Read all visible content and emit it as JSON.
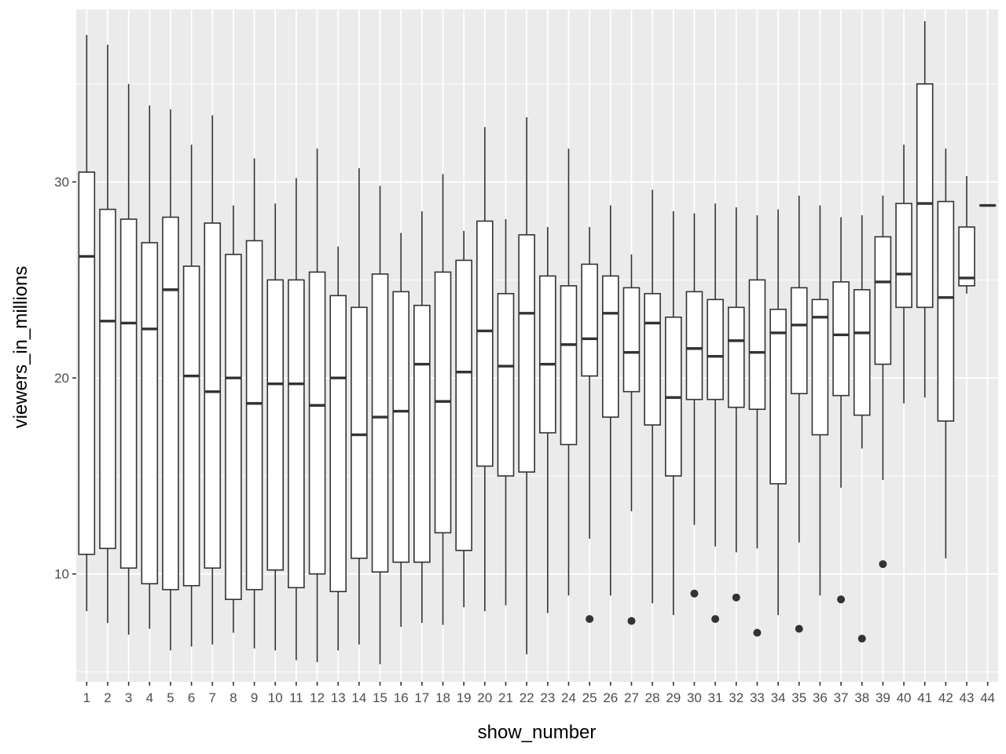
{
  "chart_data": {
    "type": "boxplot",
    "xlabel": "show_number",
    "ylabel": "viewers_in_millions",
    "ylim": [
      4.5,
      38.8
    ],
    "y_ticks": [
      10,
      20,
      30
    ],
    "grid": true,
    "legend": "none",
    "colors": {
      "panel": "#ebebeb",
      "grid_major": "#ffffff",
      "box_fill": "#ffffff",
      "box_line": "#333333",
      "outlier": "#333333",
      "tick_text": "#4d4d4d"
    },
    "categories": [
      "1",
      "2",
      "3",
      "4",
      "5",
      "6",
      "7",
      "8",
      "9",
      "10",
      "11",
      "12",
      "13",
      "14",
      "15",
      "16",
      "17",
      "18",
      "19",
      "20",
      "21",
      "22",
      "23",
      "24",
      "25",
      "26",
      "27",
      "28",
      "29",
      "30",
      "31",
      "32",
      "33",
      "34",
      "35",
      "36",
      "37",
      "38",
      "39",
      "40",
      "41",
      "42",
      "43",
      "44"
    ],
    "boxes": [
      {
        "x": "1",
        "lower": 8.1,
        "q1": 11.0,
        "median": 26.2,
        "q3": 30.5,
        "upper": 37.5,
        "outliers": []
      },
      {
        "x": "2",
        "lower": 7.5,
        "q1": 11.3,
        "median": 22.9,
        "q3": 28.6,
        "upper": 37.0,
        "outliers": []
      },
      {
        "x": "3",
        "lower": 6.9,
        "q1": 10.3,
        "median": 22.8,
        "q3": 28.1,
        "upper": 35.0,
        "outliers": []
      },
      {
        "x": "4",
        "lower": 7.2,
        "q1": 9.5,
        "median": 22.5,
        "q3": 26.9,
        "upper": 33.9,
        "outliers": []
      },
      {
        "x": "5",
        "lower": 6.1,
        "q1": 9.2,
        "median": 24.5,
        "q3": 28.2,
        "upper": 33.7,
        "outliers": []
      },
      {
        "x": "6",
        "lower": 6.3,
        "q1": 9.4,
        "median": 20.1,
        "q3": 25.7,
        "upper": 31.9,
        "outliers": []
      },
      {
        "x": "7",
        "lower": 6.4,
        "q1": 10.3,
        "median": 19.3,
        "q3": 27.9,
        "upper": 33.4,
        "outliers": []
      },
      {
        "x": "8",
        "lower": 7.0,
        "q1": 8.7,
        "median": 20.0,
        "q3": 26.3,
        "upper": 28.8,
        "outliers": []
      },
      {
        "x": "9",
        "lower": 6.2,
        "q1": 9.2,
        "median": 18.7,
        "q3": 27.0,
        "upper": 31.2,
        "outliers": []
      },
      {
        "x": "10",
        "lower": 6.1,
        "q1": 10.2,
        "median": 19.7,
        "q3": 25.0,
        "upper": 28.9,
        "outliers": []
      },
      {
        "x": "11",
        "lower": 5.6,
        "q1": 9.3,
        "median": 19.7,
        "q3": 25.0,
        "upper": 30.2,
        "outliers": []
      },
      {
        "x": "12",
        "lower": 5.5,
        "q1": 10.0,
        "median": 18.6,
        "q3": 25.4,
        "upper": 31.7,
        "outliers": []
      },
      {
        "x": "13",
        "lower": 6.1,
        "q1": 9.1,
        "median": 20.0,
        "q3": 24.2,
        "upper": 26.7,
        "outliers": []
      },
      {
        "x": "14",
        "lower": 6.4,
        "q1": 10.8,
        "median": 17.1,
        "q3": 23.6,
        "upper": 30.7,
        "outliers": []
      },
      {
        "x": "15",
        "lower": 5.4,
        "q1": 10.1,
        "median": 18.0,
        "q3": 25.3,
        "upper": 29.8,
        "outliers": []
      },
      {
        "x": "16",
        "lower": 7.3,
        "q1": 10.6,
        "median": 18.3,
        "q3": 24.4,
        "upper": 27.4,
        "outliers": []
      },
      {
        "x": "17",
        "lower": 7.5,
        "q1": 10.6,
        "median": 20.7,
        "q3": 23.7,
        "upper": 28.5,
        "outliers": []
      },
      {
        "x": "18",
        "lower": 7.4,
        "q1": 12.1,
        "median": 18.8,
        "q3": 25.4,
        "upper": 30.4,
        "outliers": []
      },
      {
        "x": "19",
        "lower": 8.3,
        "q1": 11.2,
        "median": 20.3,
        "q3": 26.0,
        "upper": 27.5,
        "outliers": []
      },
      {
        "x": "20",
        "lower": 8.1,
        "q1": 15.5,
        "median": 22.4,
        "q3": 28.0,
        "upper": 32.8,
        "outliers": []
      },
      {
        "x": "21",
        "lower": 8.4,
        "q1": 15.0,
        "median": 20.6,
        "q3": 24.3,
        "upper": 28.1,
        "outliers": []
      },
      {
        "x": "22",
        "lower": 5.9,
        "q1": 15.2,
        "median": 23.3,
        "q3": 27.3,
        "upper": 33.3,
        "outliers": []
      },
      {
        "x": "23",
        "lower": 8.0,
        "q1": 17.2,
        "median": 20.7,
        "q3": 25.2,
        "upper": 27.7,
        "outliers": []
      },
      {
        "x": "24",
        "lower": 8.9,
        "q1": 16.6,
        "median": 21.7,
        "q3": 24.7,
        "upper": 31.7,
        "outliers": []
      },
      {
        "x": "25",
        "lower": 11.8,
        "q1": 20.1,
        "median": 22.0,
        "q3": 25.8,
        "upper": 27.7,
        "outliers": [
          7.7
        ]
      },
      {
        "x": "26",
        "lower": 8.9,
        "q1": 18.0,
        "median": 23.3,
        "q3": 25.2,
        "upper": 28.8,
        "outliers": []
      },
      {
        "x": "27",
        "lower": 13.2,
        "q1": 19.3,
        "median": 21.3,
        "q3": 24.6,
        "upper": 26.3,
        "outliers": [
          7.6
        ]
      },
      {
        "x": "28",
        "lower": 8.5,
        "q1": 17.6,
        "median": 22.8,
        "q3": 24.3,
        "upper": 29.6,
        "outliers": []
      },
      {
        "x": "29",
        "lower": 7.9,
        "q1": 15.0,
        "median": 19.0,
        "q3": 23.1,
        "upper": 28.5,
        "outliers": []
      },
      {
        "x": "30",
        "lower": 12.5,
        "q1": 18.9,
        "median": 21.5,
        "q3": 24.4,
        "upper": 28.4,
        "outliers": [
          9.0
        ]
      },
      {
        "x": "31",
        "lower": 11.4,
        "q1": 18.9,
        "median": 21.1,
        "q3": 24.0,
        "upper": 28.9,
        "outliers": [
          7.7
        ]
      },
      {
        "x": "32",
        "lower": 11.1,
        "q1": 18.5,
        "median": 21.9,
        "q3": 23.6,
        "upper": 28.7,
        "outliers": [
          8.8
        ]
      },
      {
        "x": "33",
        "lower": 11.3,
        "q1": 18.4,
        "median": 21.3,
        "q3": 25.0,
        "upper": 28.3,
        "outliers": [
          7.0
        ]
      },
      {
        "x": "34",
        "lower": 7.9,
        "q1": 14.6,
        "median": 22.3,
        "q3": 23.5,
        "upper": 28.6,
        "outliers": []
      },
      {
        "x": "35",
        "lower": 11.6,
        "q1": 19.2,
        "median": 22.7,
        "q3": 24.6,
        "upper": 29.3,
        "outliers": [
          7.2
        ]
      },
      {
        "x": "36",
        "lower": 8.9,
        "q1": 17.1,
        "median": 23.1,
        "q3": 24.0,
        "upper": 28.8,
        "outliers": []
      },
      {
        "x": "37",
        "lower": 14.4,
        "q1": 19.1,
        "median": 22.2,
        "q3": 24.9,
        "upper": 28.2,
        "outliers": [
          8.7
        ]
      },
      {
        "x": "38",
        "lower": 16.4,
        "q1": 18.1,
        "median": 22.3,
        "q3": 24.5,
        "upper": 28.3,
        "outliers": [
          6.7
        ]
      },
      {
        "x": "39",
        "lower": 14.8,
        "q1": 20.7,
        "median": 24.9,
        "q3": 27.2,
        "upper": 29.3,
        "outliers": [
          10.5
        ]
      },
      {
        "x": "40",
        "lower": 18.7,
        "q1": 23.6,
        "median": 25.3,
        "q3": 28.9,
        "upper": 31.9,
        "outliers": []
      },
      {
        "x": "41",
        "lower": 19.0,
        "q1": 23.6,
        "median": 28.9,
        "q3": 35.0,
        "upper": 38.2,
        "outliers": []
      },
      {
        "x": "42",
        "lower": 10.8,
        "q1": 17.8,
        "median": 24.1,
        "q3": 29.0,
        "upper": 31.7,
        "outliers": []
      },
      {
        "x": "43",
        "lower": 24.3,
        "q1": 24.7,
        "median": 25.1,
        "q3": 27.7,
        "upper": 30.3,
        "outliers": []
      },
      {
        "x": "44",
        "lower": 28.8,
        "q1": 28.8,
        "median": 28.8,
        "q3": 28.8,
        "upper": 28.8,
        "outliers": []
      }
    ]
  }
}
